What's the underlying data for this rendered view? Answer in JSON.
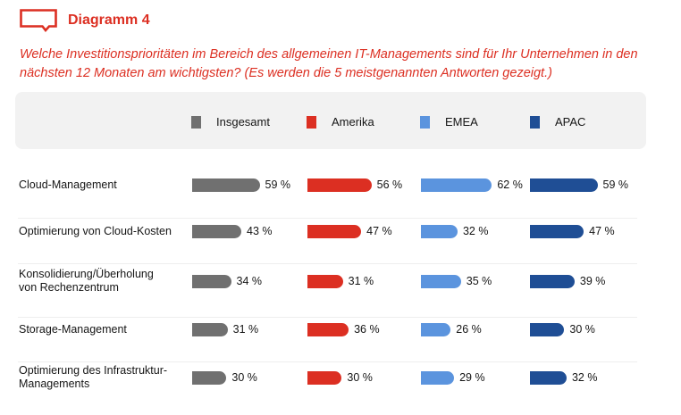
{
  "header": {
    "icon": "speech-bubble-icon",
    "title": "Diagramm 4",
    "question": "Welche Investitionsprioritäten im Bereich des allgemeinen IT-Managements sind für Ihr Unternehmen in den nächsten 12 Monaten am wichtigsten? (Es werden die 5 meistgenannten Antworten gezeigt.)"
  },
  "colors": {
    "accent": "#dc2f22",
    "legend_bg": "#f2f2f2",
    "divider": "#eeeeee"
  },
  "chart_data": {
    "type": "bar",
    "orientation": "horizontal-grouped",
    "title": "Diagramm 4",
    "subtitle": "Welche Investitionsprioritäten im Bereich des allgemeinen IT-Managements sind für Ihr Unternehmen in den nächsten 12 Monaten am wichtigsten? (Es werden die 5 meistgenannten Antworten gezeigt.)",
    "legend_position": "top",
    "unit": "%",
    "xlim": [
      0,
      100
    ],
    "categories": [
      "Cloud-Management",
      "Optimierung von Cloud-Kosten",
      "Konsolidierung/Überholung von Rechenzentrum",
      "Storage-Management",
      "Optimierung des Infrastruktur-Managements"
    ],
    "category_lines": [
      [
        "Cloud-Management"
      ],
      [
        "Optimierung von Cloud-Kosten"
      ],
      [
        "Konsolidierung/Überholung",
        "von Rechenzentrum"
      ],
      [
        "Storage-Management"
      ],
      [
        "Optimierung des Infrastruktur-",
        "Managements"
      ]
    ],
    "series": [
      {
        "name": "Insgesamt",
        "color": "#707070",
        "values": [
          59,
          43,
          34,
          31,
          30
        ],
        "labels": [
          "59 %",
          "43 %",
          "34 %",
          "31 %",
          "30 %"
        ]
      },
      {
        "name": "Amerika",
        "color": "#dc2f22",
        "values": [
          56,
          47,
          31,
          36,
          30
        ],
        "labels": [
          "56 %",
          "47 %",
          "31 %",
          "36 %",
          "30 %"
        ]
      },
      {
        "name": "EMEA",
        "color": "#5b94de",
        "values": [
          62,
          32,
          35,
          26,
          29
        ],
        "labels": [
          "62 %",
          "32 %",
          "35 %",
          "26 %",
          "29 %"
        ]
      },
      {
        "name": "APAC",
        "color": "#1f4e95",
        "values": [
          59,
          47,
          39,
          30,
          32
        ],
        "labels": [
          "59 %",
          "47 %",
          "39 %",
          "30 %",
          "32 %"
        ]
      }
    ]
  }
}
